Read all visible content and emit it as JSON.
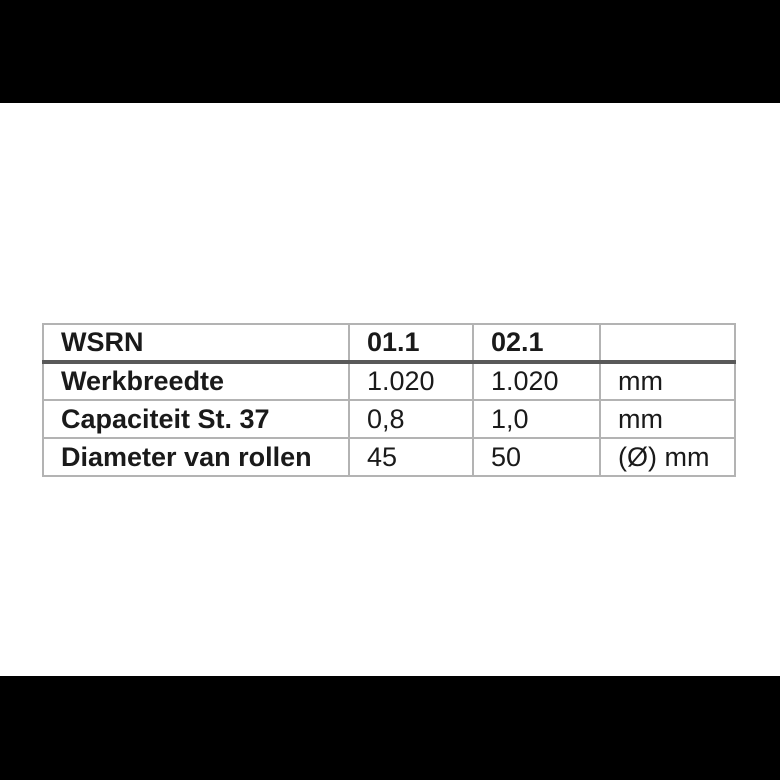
{
  "colors": {
    "letterbox": "#000000",
    "content_background": "#ffffff",
    "table_border": "#b3b3b3",
    "header_rule": "#595959",
    "text": "#1a1a1a"
  },
  "table": {
    "header": {
      "label": "WSRN",
      "model1": "01.1",
      "model2": "02.1",
      "unit": ""
    },
    "rows": [
      {
        "label": "Werkbreedte",
        "model1": "1.020",
        "model2": "1.020",
        "unit": "mm"
      },
      {
        "label": "Capaciteit St. 37",
        "model1": "0,8",
        "model2": "1,0",
        "unit": "mm"
      },
      {
        "label": "Diameter van rollen",
        "model1": "45",
        "model2": "50",
        "unit": "(Ø) mm"
      }
    ]
  }
}
